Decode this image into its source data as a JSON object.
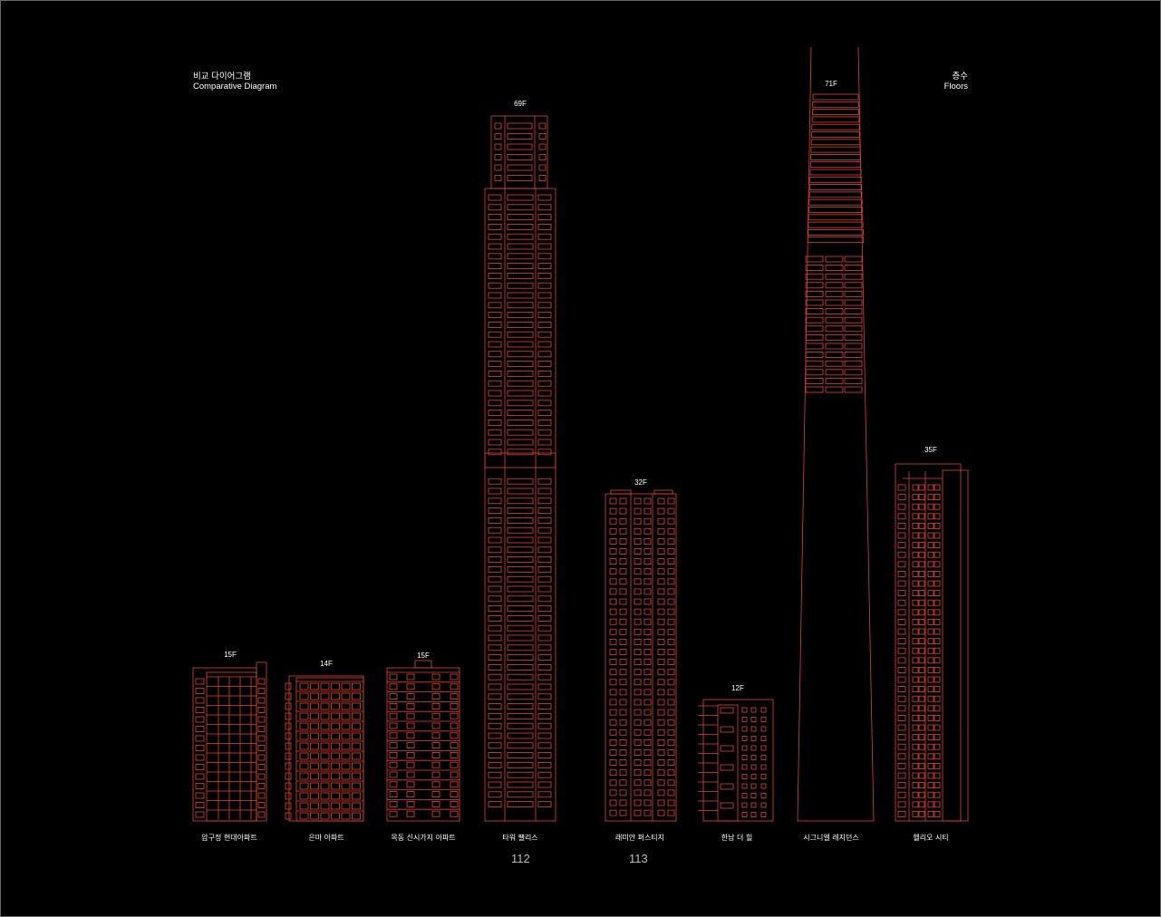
{
  "header": {
    "title_ko": "비교 다이어그램",
    "title_en": "Comparative Diagram",
    "floors_ko": "층수",
    "floors_en": "Floors"
  },
  "line_color": "#e0452f",
  "label_color": "#ffffff",
  "buildings": [
    {
      "id": "apgujeong",
      "name": "압구정 현대아파트",
      "floors": "15F",
      "style": "slab-left"
    },
    {
      "id": "eunma",
      "name": "은마 아파트",
      "floors": "14F",
      "style": "slab-balcony"
    },
    {
      "id": "mokdong",
      "name": "목동 신시가지 아파트",
      "floors": "15F",
      "style": "slab-centered"
    },
    {
      "id": "tower-palace",
      "name": "타워 팰리스",
      "floors": "69F",
      "style": "tower"
    },
    {
      "id": "raemian",
      "name": "래미안 퍼스티지",
      "floors": "32F",
      "style": "midrise"
    },
    {
      "id": "hannam",
      "name": "한남 더 힐",
      "floors": "12F",
      "style": "terrace"
    },
    {
      "id": "signiel",
      "name": "시그니엘 레지던스",
      "floors": "71F",
      "style": "supertall"
    },
    {
      "id": "helio",
      "name": "헬리오 시티",
      "floors": "35F",
      "style": "highrise"
    }
  ],
  "page_numbers": {
    "left": "112",
    "right": "113"
  }
}
